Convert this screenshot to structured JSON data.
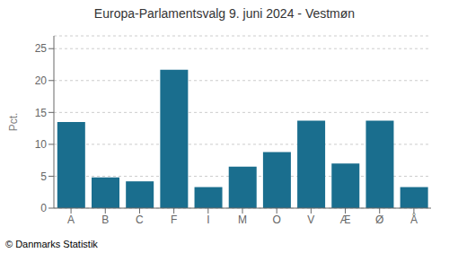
{
  "chart_data": {
    "type": "bar",
    "title": "Europa-Parlamentsvalg 9. juni 2024 - Vestmøn",
    "categories": [
      "A",
      "B",
      "C",
      "F",
      "I",
      "M",
      "O",
      "V",
      "Æ",
      "Ø",
      "Å"
    ],
    "values": [
      13.5,
      4.8,
      4.2,
      21.7,
      3.3,
      6.5,
      8.8,
      13.7,
      7.0,
      13.7,
      3.3
    ],
    "color": "#1a6e8e",
    "ylabel": "Pct.",
    "ylim": [
      0,
      27
    ],
    "yticks": [
      0,
      5,
      10,
      15,
      20,
      25
    ],
    "grid": true,
    "annotations": [
      "© Danmarks Statistik"
    ]
  }
}
